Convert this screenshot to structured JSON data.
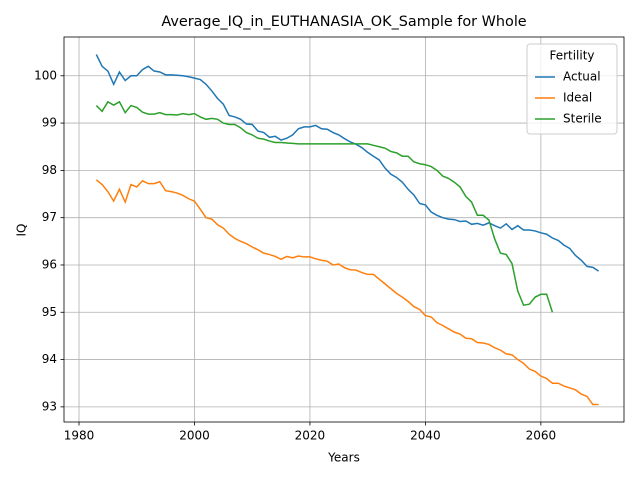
{
  "chart_data": {
    "type": "line",
    "title": "Average_IQ_in_EUTHANASIA_OK_Sample for Whole",
    "x_label": "Years",
    "y_label": "IQ",
    "x": [
      1983,
      1984,
      1985,
      1986,
      1987,
      1988,
      1989,
      1990,
      1991,
      1992,
      1993,
      1994,
      1995,
      1996,
      1997,
      1998,
      1999,
      2000,
      2001,
      2002,
      2003,
      2004,
      2005,
      2006,
      2007,
      2008,
      2009,
      2010,
      2011,
      2012,
      2013,
      2014,
      2015,
      2016,
      2017,
      2018,
      2019,
      2020,
      2021,
      2022,
      2023,
      2024,
      2025,
      2026,
      2027,
      2028,
      2029,
      2030,
      2031,
      2032,
      2033,
      2034,
      2035,
      2036,
      2037,
      2038,
      2039,
      2040,
      2041,
      2042,
      2043,
      2044,
      2045,
      2046,
      2047,
      2048,
      2049,
      2050,
      2051,
      2052,
      2053,
      2054,
      2055,
      2056,
      2057,
      2058,
      2059,
      2060,
      2061,
      2062,
      2063,
      2064,
      2065,
      2066,
      2067,
      2068,
      2069,
      2070
    ],
    "series": [
      {
        "name": "Actual",
        "color": "#1f77b4",
        "values": [
          100.45,
          100.2,
          100.1,
          99.82,
          100.08,
          99.9,
          100.0,
          100.0,
          100.13,
          100.2,
          100.1,
          100.08,
          100.02,
          100.02,
          100.01,
          100.0,
          99.98,
          99.95,
          99.92,
          99.82,
          99.68,
          99.52,
          99.4,
          99.16,
          99.13,
          99.08,
          98.98,
          98.97,
          98.83,
          98.8,
          98.7,
          98.72,
          98.64,
          98.68,
          98.75,
          98.88,
          98.92,
          98.92,
          98.95,
          98.88,
          98.87,
          98.8,
          98.75,
          98.67,
          98.6,
          98.55,
          98.48,
          98.38,
          98.3,
          98.22,
          98.05,
          97.92,
          97.85,
          97.75,
          97.6,
          97.48,
          97.3,
          97.27,
          97.12,
          97.05,
          97.0,
          96.97,
          96.96,
          96.92,
          96.93,
          96.86,
          96.88,
          96.84,
          96.89,
          96.83,
          96.78,
          96.87,
          96.75,
          96.83,
          96.74,
          96.74,
          96.72,
          96.68,
          96.65,
          96.57,
          96.52,
          96.42,
          96.35,
          96.2,
          96.1,
          95.97,
          95.95,
          95.87
        ]
      },
      {
        "name": "Ideal",
        "color": "#ff7f0e",
        "values": [
          97.8,
          97.7,
          97.55,
          97.35,
          97.6,
          97.33,
          97.7,
          97.65,
          97.78,
          97.72,
          97.72,
          97.76,
          97.57,
          97.55,
          97.52,
          97.47,
          97.4,
          97.35,
          97.18,
          97.0,
          96.97,
          96.85,
          96.78,
          96.65,
          96.56,
          96.5,
          96.45,
          96.38,
          96.32,
          96.25,
          96.22,
          96.18,
          96.12,
          96.18,
          96.15,
          96.19,
          96.17,
          96.17,
          96.13,
          96.1,
          96.08,
          96.0,
          96.02,
          95.94,
          95.9,
          95.89,
          95.84,
          95.8,
          95.8,
          95.7,
          95.6,
          95.5,
          95.4,
          95.32,
          95.23,
          95.12,
          95.06,
          94.93,
          94.9,
          94.78,
          94.72,
          94.65,
          94.58,
          94.54,
          94.45,
          94.44,
          94.36,
          94.35,
          94.32,
          94.25,
          94.2,
          94.12,
          94.1,
          94.0,
          93.92,
          93.8,
          93.75,
          93.65,
          93.6,
          93.5,
          93.5,
          93.44,
          93.4,
          93.36,
          93.27,
          93.22,
          93.05,
          93.05
        ]
      },
      {
        "name": "Sterile",
        "color": "#2ca02c",
        "values": [
          99.37,
          99.25,
          99.45,
          99.38,
          99.45,
          99.22,
          99.37,
          99.33,
          99.23,
          99.19,
          99.19,
          99.22,
          99.18,
          99.18,
          99.17,
          99.2,
          99.18,
          99.2,
          99.13,
          99.08,
          99.1,
          99.08,
          99.0,
          98.97,
          98.97,
          98.9,
          98.8,
          98.75,
          98.68,
          98.66,
          98.62,
          98.59,
          98.59,
          98.58,
          98.57,
          98.56,
          98.56,
          98.56,
          98.56,
          98.56,
          98.56,
          98.56,
          98.56,
          98.56,
          98.56,
          98.56,
          98.56,
          98.56,
          98.53,
          98.5,
          98.47,
          98.4,
          98.37,
          98.3,
          98.3,
          98.18,
          98.14,
          98.12,
          98.08,
          98.0,
          97.88,
          97.83,
          97.75,
          97.65,
          97.45,
          97.33,
          97.05,
          97.05,
          96.95,
          96.55,
          96.25,
          96.22,
          96.03,
          95.45,
          95.15,
          95.17,
          95.32,
          95.38,
          95.38,
          95.0,
          null,
          null,
          null,
          null,
          null,
          null,
          null,
          null
        ]
      }
    ],
    "xlim": [
      1977.4,
      2074.4
    ],
    "xticks": [
      1980,
      2000,
      2020,
      2040,
      2060
    ],
    "ylim": [
      92.68,
      100.82
    ],
    "yticks": [
      93,
      94,
      95,
      96,
      97,
      98,
      99,
      100
    ],
    "grid": true,
    "legend_title": "Fertility",
    "legend_loc": "upper right"
  }
}
